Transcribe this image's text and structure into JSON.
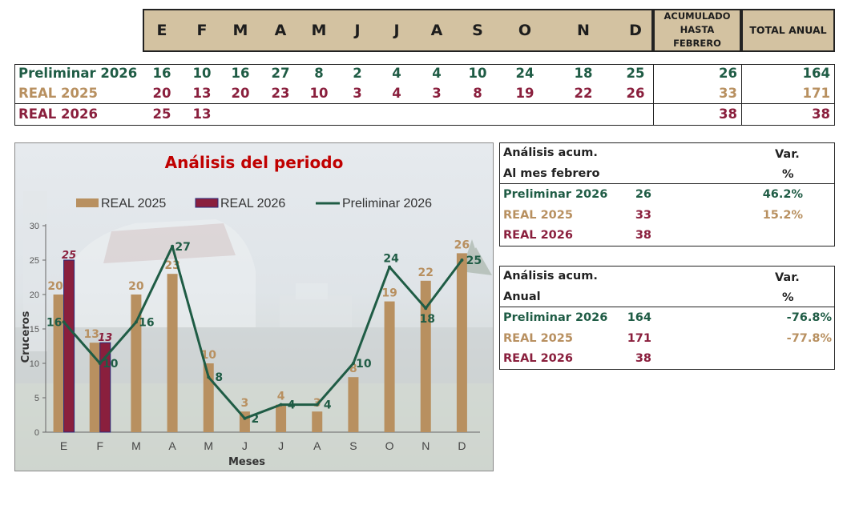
{
  "months_header": [
    "E",
    "F",
    "M",
    "A",
    "M",
    "J",
    "J",
    "A",
    "S",
    "O",
    "N",
    "D"
  ],
  "acumulado_header": [
    "ACUMULADO",
    "HASTA",
    "FEBRERO"
  ],
  "total_header": "TOTAL ANUAL",
  "rows": [
    {
      "label": "Preliminar 2026",
      "values": [
        "16",
        "10",
        "16",
        "27",
        "8",
        "2",
        "4",
        "4",
        "10",
        "24",
        "18",
        "25"
      ],
      "acum": "26",
      "total": "164"
    },
    {
      "label": "REAL 2025",
      "values": [
        "20",
        "13",
        "20",
        "23",
        "10",
        "3",
        "4",
        "3",
        "8",
        "19",
        "22",
        "26"
      ],
      "acum": "33",
      "total": "171"
    },
    {
      "label": "REAL 2026",
      "values": [
        "25",
        "13",
        "",
        "",
        "",
        "",
        "",
        "",
        "",
        "",
        "",
        ""
      ],
      "acum": "38",
      "total": "38"
    }
  ],
  "colors": {
    "preliminar": "#1f5c45",
    "real2025": "#b89060",
    "real2026": "#8a1f3d",
    "header_bg": "#d3c2a1",
    "title": "#c00000"
  },
  "chart_data": {
    "type": "bar",
    "title": "Análisis del periodo",
    "xlabel": "Meses",
    "ylabel": "Cruceros",
    "ylim": [
      0,
      30
    ],
    "yticks": [
      0,
      5,
      10,
      15,
      20,
      25,
      30
    ],
    "categories": [
      "E",
      "F",
      "M",
      "A",
      "M",
      "J",
      "J",
      "A",
      "S",
      "O",
      "N",
      "D"
    ],
    "series": [
      {
        "name": "REAL 2025",
        "kind": "bar",
        "color": "#b89060",
        "values": [
          20,
          13,
          20,
          23,
          10,
          3,
          4,
          3,
          8,
          19,
          22,
          26
        ]
      },
      {
        "name": "REAL 2026",
        "kind": "bar",
        "color": "#8a1f3d",
        "values": [
          25,
          13,
          null,
          null,
          null,
          null,
          null,
          null,
          null,
          null,
          null,
          null
        ]
      },
      {
        "name": "Preliminar 2026",
        "kind": "line",
        "color": "#1f5c45",
        "values": [
          16,
          10,
          16,
          27,
          8,
          2,
          4,
          4,
          10,
          24,
          18,
          25
        ]
      }
    ],
    "legend": "top"
  },
  "acum_feb": {
    "title1": "Análisis acum.",
    "title2": "Al mes febrero",
    "var_label": "Var.",
    "pct_label": "%",
    "rows": [
      {
        "label": "Preliminar 2026",
        "value": "26",
        "var": "46.2%"
      },
      {
        "label": "REAL 2025",
        "value": "33",
        "var": "15.2%"
      },
      {
        "label": "REAL 2026",
        "value": "38",
        "var": ""
      }
    ]
  },
  "acum_anual": {
    "title1": "Análisis acum.",
    "title2": "Anual",
    "var_label": "Var.",
    "pct_label": "%",
    "rows": [
      {
        "label": "Preliminar 2026",
        "value": "164",
        "var": "-76.8%"
      },
      {
        "label": "REAL 2025",
        "value": "171",
        "var": "-77.8%"
      },
      {
        "label": "REAL 2026",
        "value": "38",
        "var": ""
      }
    ]
  }
}
